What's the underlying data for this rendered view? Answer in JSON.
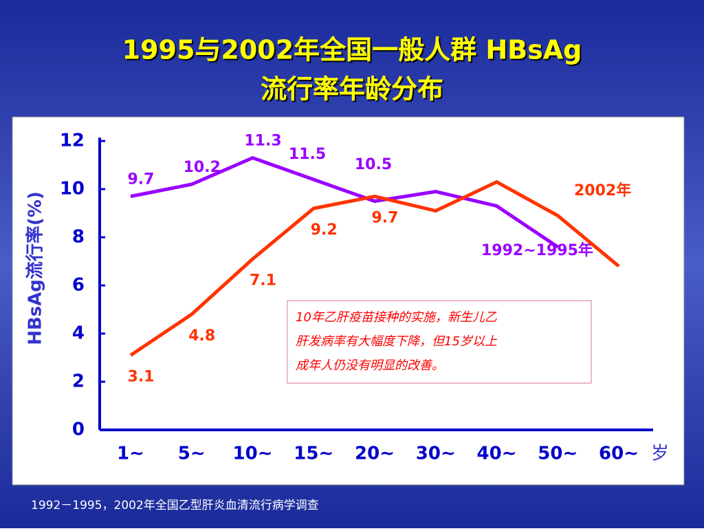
{
  "chart_data": {
    "type": "line",
    "title": [
      "1995与2002年全国一般人群 HBsAg",
      "流行率年龄分布"
    ],
    "ylabel": "HBsAg流行率(%)",
    "xunit": "岁",
    "categories": [
      "1~",
      "5~",
      "10~",
      "15~",
      "20~",
      "30~",
      "40~",
      "50~",
      "60~"
    ],
    "series": [
      {
        "name": "1992~1995年",
        "color": "#9900ff",
        "values": [
          9.7,
          10.2,
          11.3,
          10.4,
          9.5,
          9.9,
          9.3,
          7.6,
          null
        ],
        "value_labels": [
          "9.7",
          "10.2",
          "11.3",
          null,
          null,
          null,
          null,
          null,
          null
        ]
      },
      {
        "name": "2002年",
        "color": "#ff3300",
        "values": [
          3.1,
          4.8,
          7.1,
          9.2,
          9.7,
          9.1,
          10.3,
          8.9,
          6.8
        ],
        "value_labels": [
          "3.1",
          "4.8",
          "7.1",
          "9.2",
          "9.7",
          null,
          null,
          null,
          null
        ]
      }
    ],
    "annotations": [
      "11.5",
      "10.5"
    ],
    "note": [
      "10年乙肝疫苗接种的实施，新生儿乙",
      "肝发病率有大幅度下降，但15岁以上",
      "成年人仍没有明显的改善。"
    ],
    "ylim": [
      0,
      12
    ],
    "yticks": [
      0,
      2,
      4,
      6,
      8,
      10,
      12
    ]
  },
  "footer": "1992－1995，2002年全国乙型肝炎血清流行病学调查"
}
